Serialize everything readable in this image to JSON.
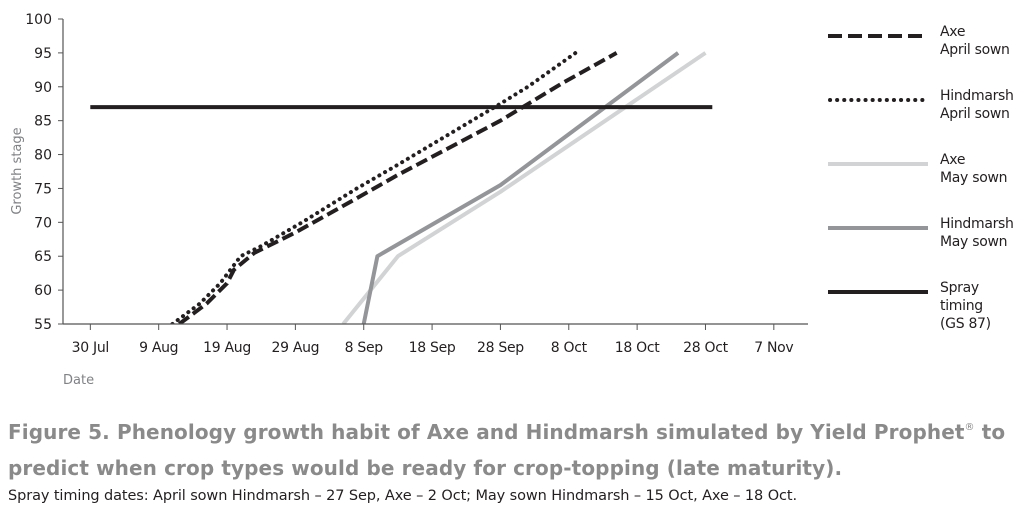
{
  "chart_data": {
    "type": "line",
    "xlabel": "Date",
    "ylabel": "Growth stage",
    "ylim": [
      55,
      100
    ],
    "yticks": [
      55,
      60,
      65,
      70,
      75,
      80,
      85,
      90,
      95,
      100
    ],
    "xlim": [
      "2015-07-26",
      "2015-11-12"
    ],
    "xticks": [
      {
        "date": "2015-07-30",
        "label": "30 Jul"
      },
      {
        "date": "2015-08-09",
        "label": "9 Aug"
      },
      {
        "date": "2015-08-19",
        "label": "19 Aug"
      },
      {
        "date": "2015-08-29",
        "label": "29 Aug"
      },
      {
        "date": "2015-09-08",
        "label": "8 Sep"
      },
      {
        "date": "2015-09-18",
        "label": "18 Sep"
      },
      {
        "date": "2015-09-28",
        "label": "28 Sep"
      },
      {
        "date": "2015-10-08",
        "label": "8 Oct"
      },
      {
        "date": "2015-10-18",
        "label": "18 Oct"
      },
      {
        "date": "2015-10-28",
        "label": "28 Oct"
      },
      {
        "date": "2015-11-07",
        "label": "7 Nov"
      }
    ],
    "grid": false,
    "legend_position": "right",
    "series": [
      {
        "name": "Axe April sown",
        "label_lines": [
          "Axe",
          "April sown"
        ],
        "color": "#231f20",
        "style": "dashed",
        "points": [
          [
            "2015-08-12",
            55
          ],
          [
            "2015-08-16",
            58
          ],
          [
            "2015-08-19",
            61
          ],
          [
            "2015-08-20",
            63
          ],
          [
            "2015-08-23",
            65.5
          ],
          [
            "2015-08-29",
            68.5
          ],
          [
            "2015-09-06",
            73
          ],
          [
            "2015-09-13",
            77
          ],
          [
            "2015-09-28",
            85
          ],
          [
            "2015-10-07",
            90.5
          ],
          [
            "2015-10-15",
            95
          ]
        ]
      },
      {
        "name": "Hindmarsh April sown",
        "label_lines": [
          "Hindmarsh",
          "April sown"
        ],
        "color": "#231f20",
        "style": "dotted",
        "points": [
          [
            "2015-08-11",
            55
          ],
          [
            "2015-08-15",
            58
          ],
          [
            "2015-08-18",
            61
          ],
          [
            "2015-08-21",
            65
          ],
          [
            "2015-08-24",
            66.5
          ],
          [
            "2015-08-30",
            70
          ],
          [
            "2015-09-07",
            75
          ],
          [
            "2015-09-13",
            78.5
          ],
          [
            "2015-09-28",
            87.5
          ],
          [
            "2015-10-02",
            90
          ],
          [
            "2015-10-09",
            95
          ]
        ]
      },
      {
        "name": "Axe May sown",
        "label_lines": [
          "Axe",
          "May sown"
        ],
        "color": "#d1d3d4",
        "style": "solid",
        "points": [
          [
            "2015-09-05",
            55
          ],
          [
            "2015-09-13",
            65
          ],
          [
            "2015-09-28",
            74.5
          ],
          [
            "2015-10-28",
            95
          ]
        ]
      },
      {
        "name": "Hindmarsh May sown",
        "label_lines": [
          "Hindmarsh",
          "May sown"
        ],
        "color": "#939598",
        "style": "solid",
        "points": [
          [
            "2015-09-08",
            55
          ],
          [
            "2015-09-10",
            65
          ],
          [
            "2015-09-28",
            75.5
          ],
          [
            "2015-10-24",
            95
          ]
        ]
      },
      {
        "name": "Spray timing (GS 87)",
        "label_lines": [
          "Spray timing",
          "(GS 87)"
        ],
        "color": "#231f20",
        "style": "solid",
        "points": [
          [
            "2015-07-30",
            87
          ],
          [
            "2015-10-29",
            87
          ]
        ]
      }
    ]
  },
  "caption": {
    "title_part1": "Figure 5. Phenology growth habit of Axe and Hindmarsh simulated by Yield Prophet",
    "title_mark": "®",
    "title_part2": " to predict when crop types would be ready for crop-topping (late maturity).",
    "subtitle": "Spray timing dates: April sown Hindmarsh – 27 Sep, Axe – 2 Oct; May sown Hindmarsh – 15 Oct, Axe – 18 Oct."
  }
}
